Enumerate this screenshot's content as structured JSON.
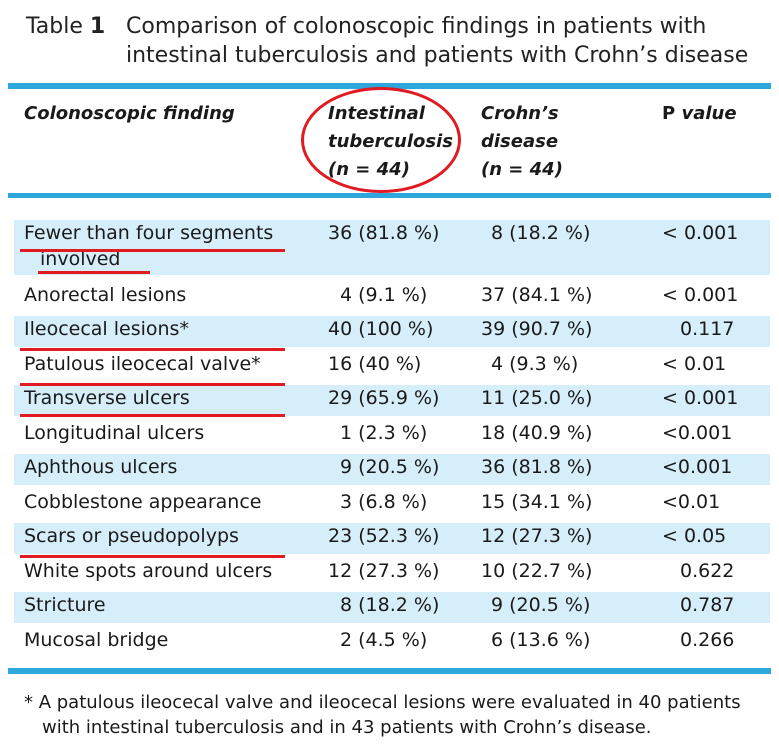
{
  "title": {
    "label_word": "Table",
    "label_num": "1",
    "text": "Comparison of colonoscopic findings in patients with intestinal tuberculosis and patients with Crohn’s disease"
  },
  "headers": {
    "finding": "Colonoscopic finding",
    "itb_line1": "Intestinal",
    "itb_line2": "tuberculosis",
    "itb_line3": "(n = 44)",
    "cd_line1": "Crohn’s disease",
    "cd_line2": "(n = 44)",
    "p_prefix": "P",
    "p_suffix": " value"
  },
  "rows": [
    {
      "finding": "Fewer than four segments",
      "finding_cont": "involved",
      "itb": "36 (81.8 %)",
      "cd": "8 (18.2 %)",
      "p": "< 0.001"
    },
    {
      "finding": "Anorectal lesions",
      "itb": "4 (9.1 %)",
      "cd": "37 (84.1 %)",
      "p": "< 0.001"
    },
    {
      "finding": "Ileocecal lesions*",
      "itb": "40 (100 %)",
      "cd": "39 (90.7 %)",
      "p": "0.117"
    },
    {
      "finding": "Patulous ileocecal valve*",
      "itb": "16 (40 %)",
      "cd": "4 (9.3 %)",
      "p": "< 0.01"
    },
    {
      "finding": "Transverse ulcers",
      "itb": "29 (65.9 %)",
      "cd": "11 (25.0 %)",
      "p": "< 0.001"
    },
    {
      "finding": "Longitudinal ulcers",
      "itb": "1 (2.3 %)",
      "cd": "18 (40.9 %)",
      "p": "<0.001"
    },
    {
      "finding": "Aphthous ulcers",
      "itb": "9 (20.5 %)",
      "cd": "36 (81.8 %)",
      "p": "<0.001"
    },
    {
      "finding": "Cobblestone appearance",
      "itb": "3 (6.8 %)",
      "cd": "15 (34.1 %)",
      "p": "<0.01"
    },
    {
      "finding": "Scars or pseudopolyps",
      "itb": "23 (52.3 %)",
      "cd": "12 (27.3 %)",
      "p": "< 0.05"
    },
    {
      "finding": "White spots around ulcers",
      "itb": "12 (27.3 %)",
      "cd": "10 (22.7 %)",
      "p": "0.622"
    },
    {
      "finding": "Stricture",
      "itb": "8 (18.2 %)",
      "cd": "9 (20.5 %)",
      "p": "0.787"
    },
    {
      "finding": "Mucosal bridge",
      "itb": "2 (4.5 %)",
      "cd": "6 (13.6 %)",
      "p": "0.266"
    }
  ],
  "footnote": {
    "line1": "* A patulous ileocecal valve and ileocecal lesions were evaluated in 40 patients",
    "line2": "with intestinal tuberculosis and in 43 patients with Crohn’s disease."
  },
  "colors": {
    "rule": "#2ea7dc",
    "row_shade": "#d6eefa",
    "annotation": "#e01b22"
  }
}
